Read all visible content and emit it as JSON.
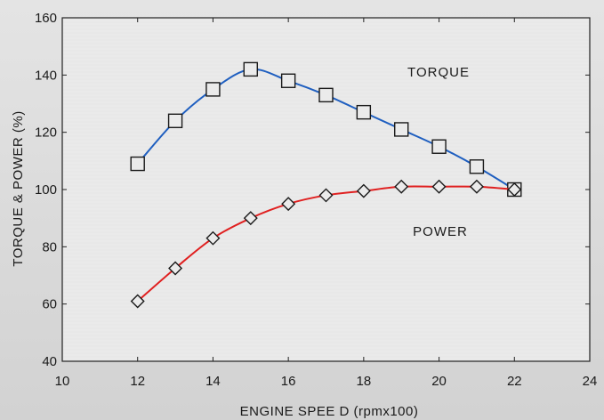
{
  "chart_data": {
    "type": "line",
    "xlabel": "ENGINE SPEE D (rpmx100)",
    "ylabel": "TORQUE & POWER (%)",
    "xlim": [
      10,
      24
    ],
    "ylim": [
      40,
      160
    ],
    "xticks": [
      10,
      12,
      14,
      16,
      18,
      20,
      22,
      24
    ],
    "yticks": [
      40,
      60,
      80,
      100,
      120,
      140,
      160
    ],
    "grid": false,
    "legend": "none",
    "series": [
      {
        "name": "TORQUE",
        "color": "#1f5fc0",
        "marker": "square",
        "x": [
          12,
          13,
          14,
          15,
          16,
          17,
          18,
          19,
          20,
          21,
          22
        ],
        "values": [
          109,
          124,
          135,
          142,
          138,
          133,
          127,
          121,
          115,
          108,
          100
        ]
      },
      {
        "name": "POWER",
        "color": "#e02020",
        "marker": "diamond",
        "x": [
          12,
          13,
          14,
          15,
          16,
          17,
          18,
          19,
          20,
          21,
          22
        ],
        "values": [
          61,
          72.5,
          83,
          90,
          95,
          98,
          99.5,
          101,
          101,
          101,
          100
        ]
      }
    ]
  }
}
